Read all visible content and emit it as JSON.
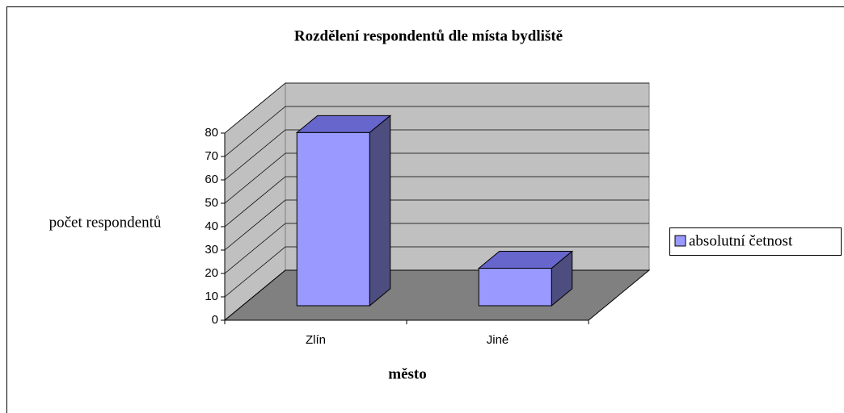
{
  "chart_data": {
    "type": "bar3d",
    "title": "Rozdělení respondentů dle místa bydliště",
    "x_label": "město",
    "y_label": "počet respondentů",
    "categories": [
      "Zlín",
      "Jiné"
    ],
    "series": [
      {
        "name": "absolutní četnost",
        "color": "#9999ff",
        "values": [
          74,
          16
        ]
      }
    ],
    "ylim": [
      0,
      80
    ],
    "yticks": [
      0,
      10,
      20,
      30,
      40,
      50,
      60,
      70,
      80
    ],
    "grid": true,
    "legend": "right"
  }
}
